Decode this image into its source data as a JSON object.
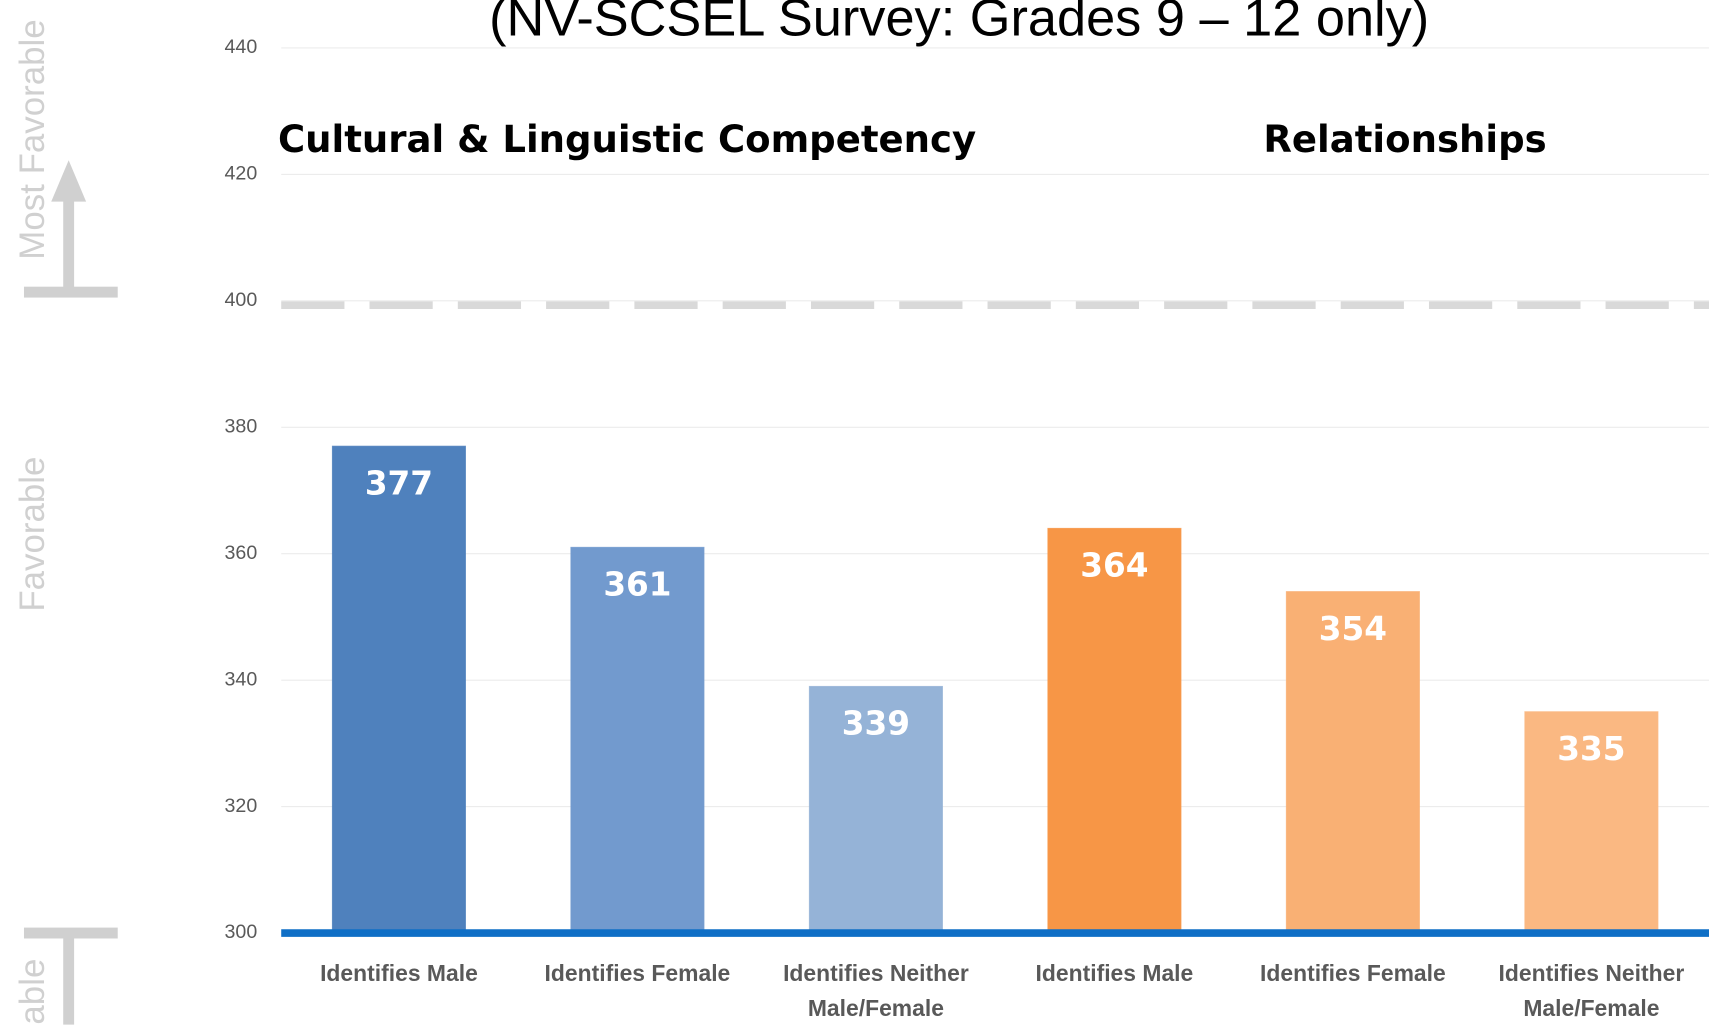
{
  "chart_data": {
    "type": "bar",
    "title": "(NV-SCSEL Survey: Grades 9 – 12 only)",
    "groups": [
      {
        "title": "Cultural & Linguistic Competency"
      },
      {
        "title": "Relationships"
      }
    ],
    "categories": [
      "Identifies Male",
      "Identifies Female",
      "Identifies Neither Male/Female",
      "Identifies Male",
      "Identifies Female",
      "Identifies Neither Male/Female"
    ],
    "values": [
      377,
      361,
      339,
      364,
      354,
      335
    ],
    "colors": [
      "#4f81bd",
      "#729ace",
      "#95b3d7",
      "#f79646",
      "#f9b074",
      "#fab882"
    ],
    "ylim": [
      300,
      440
    ],
    "yticks": [
      300,
      320,
      340,
      360,
      380,
      400,
      420,
      440
    ],
    "reference_line": 400,
    "side_labels": [
      "Most Favorable",
      "Favorable",
      "able"
    ],
    "grid": true
  }
}
